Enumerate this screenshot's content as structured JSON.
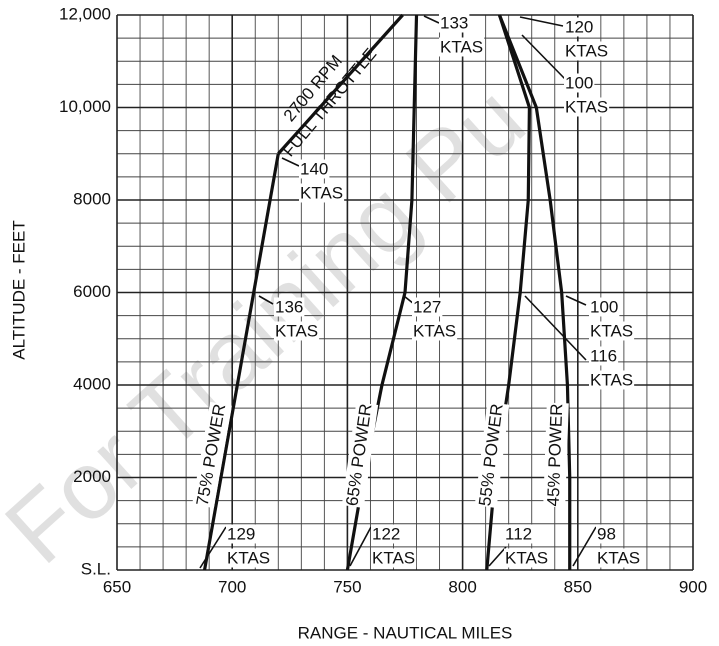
{
  "chart_data": {
    "type": "line",
    "xlabel": "RANGE - NAUTICAL MILES",
    "ylabel": "ALTITUDE - FEET",
    "watermark": "For Training Pu",
    "xlim": [
      650,
      900
    ],
    "ylim": [
      0,
      12000
    ],
    "xticks": [
      650,
      700,
      750,
      800,
      850,
      900
    ],
    "yticks": [
      {
        "value": 0,
        "label": "S.L."
      },
      2000,
      4000,
      6000,
      8000,
      {
        "value": 10000,
        "label": "10,000"
      },
      {
        "value": 12000,
        "label": "12,000"
      }
    ],
    "grid": true,
    "color": "#111111",
    "series": [
      {
        "name": "75% POWER",
        "x": [
          688,
          720
        ],
        "values": [
          0,
          9000
        ]
      },
      {
        "x": [
          720,
          774
        ],
        "values": [
          9000,
          12000
        ]
      },
      {
        "name": "65% POWER",
        "x": [
          750,
          757,
          765,
          775,
          778,
          779,
          780
        ],
        "values": [
          0,
          2000,
          4000,
          6000,
          8000,
          10000,
          12000
        ]
      },
      {
        "name": "55% POWER",
        "x": [
          810.5,
          814,
          820,
          825,
          828.5,
          829,
          816
        ],
        "values": [
          0,
          2000,
          4000,
          6000,
          8000,
          10000,
          12000
        ]
      },
      {
        "name": "45% POWER",
        "x": [
          846.5,
          846.5,
          845.5,
          843,
          838,
          832,
          816
        ],
        "values": [
          0,
          2000,
          4000,
          6000,
          8000,
          10000,
          12000
        ]
      }
    ],
    "annotations": [
      {
        "lines": [
          "129",
          "KTAS"
        ]
      },
      {
        "lines": [
          "122",
          "KTAS"
        ]
      },
      {
        "lines": [
          "112",
          "KTAS"
        ]
      },
      {
        "lines": [
          "98",
          "KTAS"
        ]
      },
      {
        "lines": [
          "136",
          "KTAS"
        ]
      },
      {
        "lines": [
          "127",
          "KTAS"
        ]
      },
      {
        "lines": [
          "100",
          "KTAS"
        ]
      },
      {
        "lines": [
          "116",
          "KTAS"
        ]
      },
      {
        "lines": [
          "140",
          "KTAS"
        ]
      },
      {
        "lines": [
          "133",
          "KTAS"
        ]
      },
      {
        "lines": [
          "120",
          "KTAS"
        ]
      },
      {
        "lines": [
          "100",
          "KTAS"
        ]
      },
      {
        "lines": [
          "2700 RPM",
          "FULL THROTTLE"
        ]
      }
    ]
  }
}
